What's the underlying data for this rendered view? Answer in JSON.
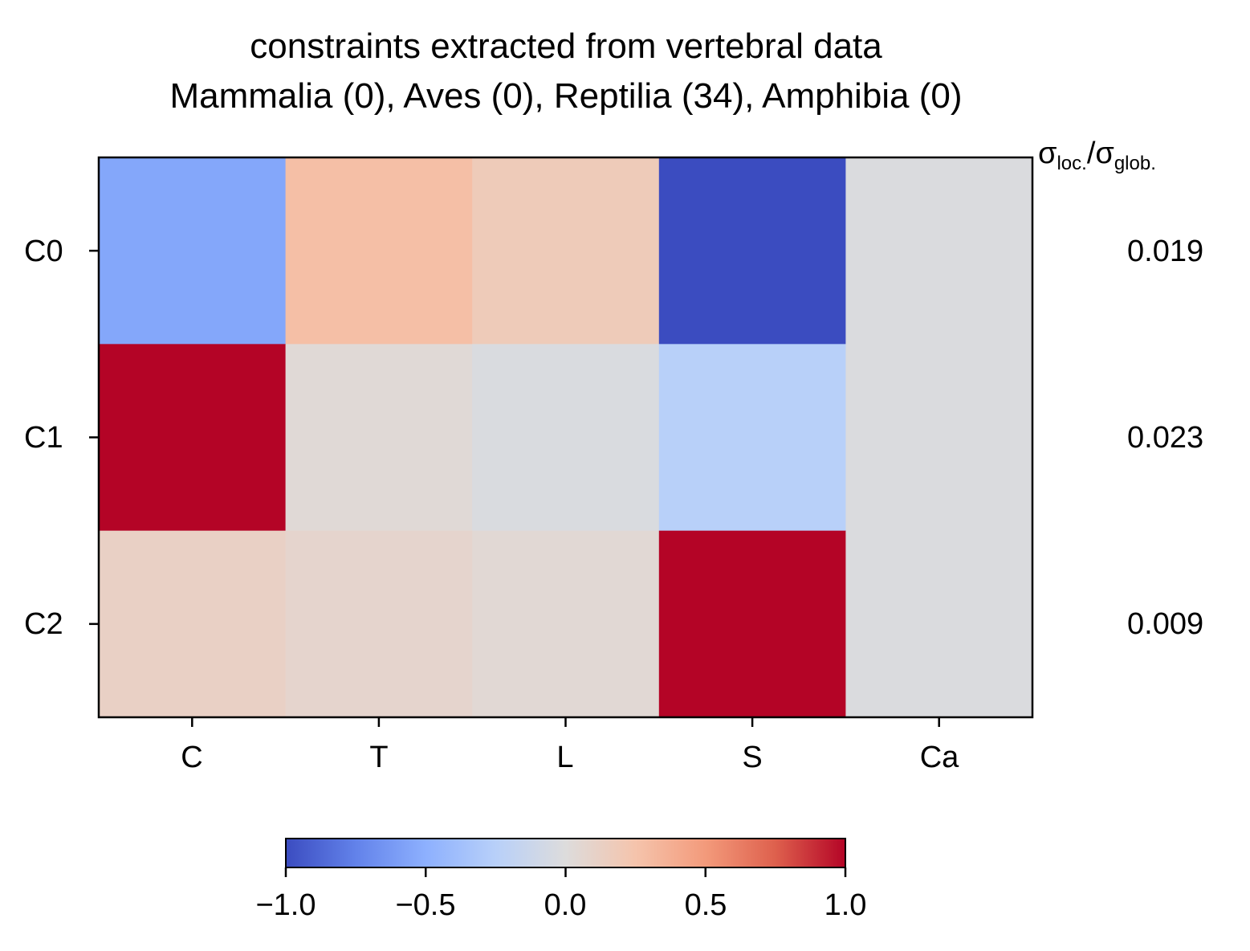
{
  "chart_data": {
    "type": "heatmap",
    "title": "constraints extracted from vertebral data",
    "subtitle": "Mammalia (0), Aves (0), Reptilia (34), Amphibia (0)",
    "columns": [
      "C",
      "T",
      "L",
      "S",
      "Ca"
    ],
    "rows": [
      "C0",
      "C1",
      "C2"
    ],
    "values": [
      [
        -0.55,
        0.28,
        0.18,
        -1.0,
        -0.02
      ],
      [
        1.0,
        0.03,
        -0.03,
        -0.25,
        -0.02
      ],
      [
        0.12,
        0.08,
        0.04,
        1.0,
        -0.02
      ]
    ],
    "side_label": {
      "symbol": "σ",
      "sub1": "loc.",
      "sub2": "glob.",
      "sep": "/"
    },
    "ratios": [
      "0.019",
      "0.023",
      "0.009"
    ],
    "colormap": "coolwarm",
    "colorbar": {
      "vmin": -1.0,
      "vmax": 1.0,
      "ticks": [
        -1.0,
        -0.5,
        0.0,
        0.5,
        1.0
      ],
      "tick_labels": [
        "−1.0",
        "−0.5",
        "0.0",
        "0.5",
        "1.0"
      ],
      "orientation": "horizontal",
      "placement": "bottom"
    },
    "grid": false
  }
}
